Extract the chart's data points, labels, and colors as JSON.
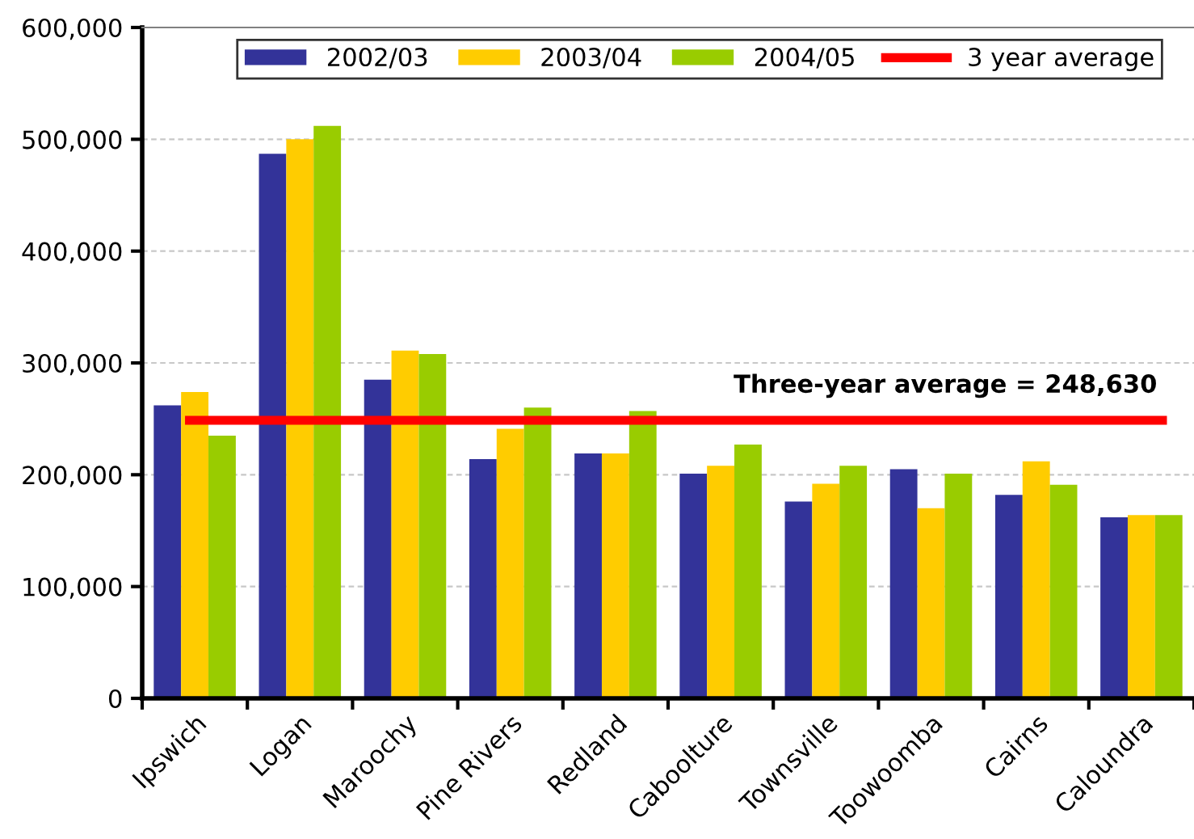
{
  "chart_data": {
    "type": "bar",
    "categories": [
      "Ipswich",
      "Logan",
      "Maroochy",
      "Pine Rivers",
      "Redland",
      "Caboolture",
      "Townsville",
      "Toowoomba",
      "Cairns",
      "Caloundra"
    ],
    "series": [
      {
        "name": "2002/03",
        "color": "#333399",
        "values": [
          262000,
          487000,
          285000,
          214000,
          219000,
          201000,
          176000,
          205000,
          182000,
          162000
        ]
      },
      {
        "name": "2003/04",
        "color": "#ffcc00",
        "values": [
          274000,
          500000,
          311000,
          241000,
          219000,
          208000,
          192000,
          170000,
          212000,
          164000
        ]
      },
      {
        "name": "2004/05",
        "color": "#99cc00",
        "values": [
          235000,
          512000,
          308000,
          260000,
          257000,
          227000,
          208000,
          201000,
          191000,
          164000
        ]
      }
    ],
    "ref_lines": [
      {
        "axis": "y",
        "value": 248630,
        "label": "3 year average",
        "color": "#ff0000",
        "line_style": "solid"
      }
    ],
    "annotations": [
      "Three-year average = 248,630"
    ],
    "ylim": [
      0,
      600000
    ],
    "yticks": [
      {
        "value": 0,
        "label": "0"
      },
      {
        "value": 100000,
        "label": "100,000"
      },
      {
        "value": 200000,
        "label": "200,000"
      },
      {
        "value": 300000,
        "label": "300,000"
      },
      {
        "value": 400000,
        "label": "400,000"
      },
      {
        "value": 500000,
        "label": "500,000"
      },
      {
        "value": 600000,
        "label": "600,000"
      }
    ],
    "grid": "y",
    "legend": "top"
  }
}
